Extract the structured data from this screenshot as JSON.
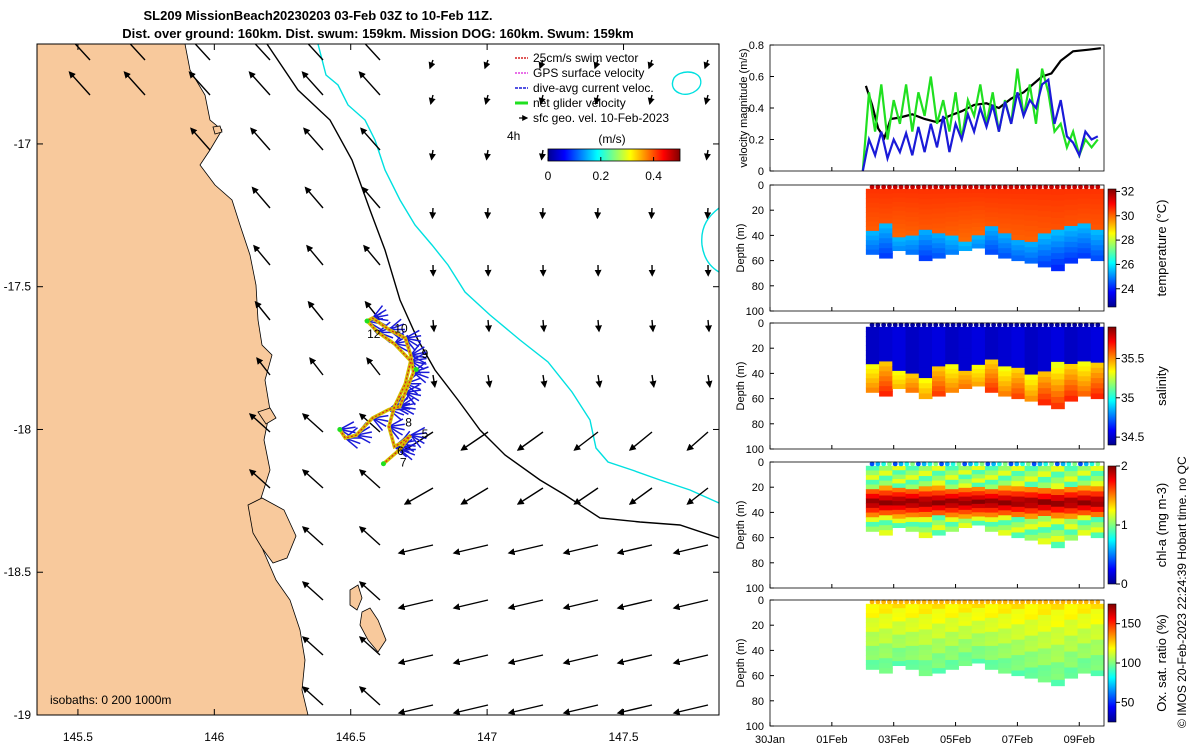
{
  "title": {
    "line1": "SL209 MissionBeach20230203 03-Feb 03Z to 10-Feb 11Z.",
    "line2": "Dist. over ground: 160km. Dist. swum: 159km. Mission DOG: 160km. Swum: 159km"
  },
  "footer": "© IMOS 20-Feb-2023 22:24:39 Hobart time. no QC",
  "colors": {
    "land": "#f8c99c",
    "isobath_200": "#00e0e0",
    "isobath_1000": "#000000",
    "swim_vector": "#d62020",
    "gps_velocity": "#e040e0",
    "current": "#1a1ad8",
    "net_velocity": "#20e020"
  },
  "map": {
    "xlim": [
      145.35,
      147.85
    ],
    "ylim": [
      -19.0,
      -16.65
    ],
    "xticks": [
      "145.5",
      "146",
      "146.5",
      "147",
      "147.5"
    ],
    "yticks": [
      "-17",
      "-17.5",
      "-18",
      "-18.5",
      "-19"
    ],
    "isobaths_label": "isobaths: 0   200  1000m",
    "legend": [
      {
        "label": "25cm/s swim vector",
        "color": "#d62020"
      },
      {
        "label": "GPS surface velocity",
        "color": "#e040e0"
      },
      {
        "label": "dive-avg current veloc.",
        "color": "#1a1ad8"
      },
      {
        "label": "net glider velocity",
        "color": "#20e020"
      },
      {
        "label": "sfc geo. vel. 10-Feb-2023",
        "color": "#000000"
      }
    ],
    "time_tag": "4h",
    "colorbar": {
      "unit": "(m/s)",
      "ticks": [
        "0",
        "0.2",
        "0.4"
      ],
      "max": 0.5
    },
    "day_labels": [
      {
        "text": "12",
        "lon": 146.56,
        "lat": -17.68
      },
      {
        "text": "10",
        "lon": 146.66,
        "lat": -17.66
      },
      {
        "text": "9",
        "lon": 146.76,
        "lat": -17.75
      },
      {
        "text": "8",
        "lon": 146.7,
        "lat": -17.99
      },
      {
        "text": "5",
        "lon": 146.76,
        "lat": -18.03
      },
      {
        "text": "6",
        "lon": 146.67,
        "lat": -18.09
      },
      {
        "text": "7",
        "lon": 146.68,
        "lat": -18.13
      }
    ]
  },
  "chart_data": [
    {
      "type": "line",
      "title": "",
      "ylabel": "velocity magnitude (m/s)",
      "ylim": [
        0,
        0.8
      ],
      "yticks": [
        "0",
        "0.2",
        "0.4",
        "0.6",
        "0.8"
      ],
      "series": [
        {
          "name": "sfc geo. vel.",
          "color": "#000000",
          "x": [
            3.1,
            3.3,
            3.5,
            3.7,
            3.9,
            4.2,
            4.6,
            5.0,
            5.4,
            5.8,
            6.2,
            6.6,
            7.0,
            7.4,
            7.8,
            8.2,
            8.5,
            8.8,
            9.1,
            9.4,
            9.8,
            10.3,
            10.7
          ],
          "values": [
            0.54,
            0.42,
            0.27,
            0.21,
            0.33,
            0.34,
            0.36,
            0.33,
            0.31,
            0.35,
            0.38,
            0.42,
            0.43,
            0.4,
            0.46,
            0.5,
            0.55,
            0.6,
            0.62,
            0.7,
            0.76,
            0.77,
            0.78
          ]
        },
        {
          "name": "net glider velocity",
          "color": "#20e020",
          "x": [
            3.0,
            3.2,
            3.4,
            3.6,
            3.8,
            4.0,
            4.2,
            4.4,
            4.6,
            4.8,
            5.0,
            5.2,
            5.4,
            5.6,
            5.8,
            6.0,
            6.2,
            6.4,
            6.6,
            6.8,
            7.0,
            7.2,
            7.4,
            7.6,
            7.8,
            8.0,
            8.2,
            8.4,
            8.6,
            8.8,
            9.0,
            9.2,
            9.4,
            9.6,
            9.8,
            10.0,
            10.2,
            10.4,
            10.6
          ],
          "values": [
            0.0,
            0.5,
            0.25,
            0.55,
            0.2,
            0.45,
            0.3,
            0.55,
            0.25,
            0.5,
            0.35,
            0.6,
            0.3,
            0.45,
            0.25,
            0.5,
            0.2,
            0.45,
            0.35,
            0.55,
            0.3,
            0.5,
            0.25,
            0.45,
            0.3,
            0.65,
            0.35,
            0.55,
            0.3,
            0.65,
            0.5,
            0.25,
            0.3,
            0.15,
            0.25,
            0.1,
            0.2,
            0.15,
            0.2
          ]
        },
        {
          "name": "dive-avg current veloc.",
          "color": "#1a1ad8",
          "x": [
            3.0,
            3.2,
            3.4,
            3.6,
            3.8,
            4.0,
            4.2,
            4.4,
            4.6,
            4.8,
            5.0,
            5.2,
            5.4,
            5.6,
            5.8,
            6.0,
            6.2,
            6.4,
            6.6,
            6.8,
            7.0,
            7.2,
            7.4,
            7.6,
            7.8,
            8.0,
            8.2,
            8.4,
            8.6,
            8.8,
            9.0,
            9.2,
            9.4,
            9.6,
            9.8,
            10.0,
            10.2,
            10.4,
            10.6
          ],
          "values": [
            0.0,
            0.2,
            0.1,
            0.25,
            0.08,
            0.2,
            0.12,
            0.24,
            0.1,
            0.28,
            0.12,
            0.3,
            0.15,
            0.35,
            0.12,
            0.3,
            0.2,
            0.36,
            0.25,
            0.4,
            0.28,
            0.42,
            0.25,
            0.44,
            0.3,
            0.5,
            0.35,
            0.45,
            0.4,
            0.55,
            0.58,
            0.3,
            0.45,
            0.22,
            0.18,
            0.1,
            0.25,
            0.2,
            0.22
          ]
        }
      ],
      "xlim": [
        0,
        10.8
      ]
    },
    {
      "type": "heatmap",
      "title": "",
      "ylabel": "Depth (m)",
      "colorbar_label": "temperature (°C)",
      "colorbar_ticks": [
        "32",
        "30",
        "28",
        "26",
        "24"
      ],
      "clim": [
        22.5,
        32.2
      ],
      "ylim": [
        0,
        100
      ],
      "yticks": [
        "0",
        "20",
        "40",
        "60",
        "80",
        "100"
      ],
      "xlim": [
        0,
        10.8
      ],
      "surface_value": 30.5,
      "deep_value": 25.5,
      "mixed_layer_depth": [
        35,
        30,
        40,
        38,
        32,
        35,
        40,
        45,
        38,
        30,
        35,
        40,
        42,
        38,
        35,
        32,
        30,
        35
      ],
      "bottom_depth": [
        55,
        58,
        52,
        55,
        60,
        58,
        55,
        52,
        50,
        55,
        58,
        60,
        62,
        65,
        68,
        62,
        58,
        60
      ]
    },
    {
      "type": "heatmap",
      "title": "",
      "ylabel": "Depth (m)",
      "colorbar_label": "salinity",
      "colorbar_ticks": [
        "35.5",
        "35",
        "34.5"
      ],
      "clim": [
        34.4,
        35.9
      ],
      "ylim": [
        0,
        100
      ],
      "yticks": [
        "0",
        "20",
        "40",
        "60",
        "80",
        "100"
      ],
      "xlim": [
        0,
        10.8
      ],
      "surface_value": 34.5,
      "deep_value": 35.3,
      "mixed_layer_depth": [
        30,
        28,
        35,
        38,
        40,
        32,
        30,
        35,
        30,
        28,
        32,
        35,
        38,
        35,
        30,
        32,
        28,
        30
      ],
      "bottom_depth": [
        55,
        58,
        52,
        55,
        60,
        58,
        55,
        52,
        50,
        55,
        58,
        60,
        62,
        65,
        68,
        62,
        58,
        60
      ]
    },
    {
      "type": "heatmap",
      "title": "",
      "ylabel": "Depth (m)",
      "colorbar_label": "chl-a (mg m-3)",
      "colorbar_ticks": [
        "2",
        "1",
        "0"
      ],
      "clim": [
        0,
        2
      ],
      "ylim": [
        0,
        100
      ],
      "yticks": [
        "0",
        "20",
        "40",
        "60",
        "80",
        "100"
      ],
      "xlim": [
        0,
        10.8
      ],
      "surface_value": 0.9,
      "max_value": 2.0,
      "chl_max_depth": 30,
      "bottom_depth": [
        55,
        58,
        52,
        55,
        60,
        58,
        55,
        52,
        50,
        55,
        58,
        60,
        62,
        65,
        68,
        62,
        58,
        60
      ]
    },
    {
      "type": "heatmap",
      "title": "",
      "ylabel": "Depth (m)",
      "colorbar_label": "Ox. sat. ratio (%)",
      "colorbar_ticks": [
        "150",
        "100",
        "50"
      ],
      "clim": [
        25,
        175
      ],
      "ylim": [
        0,
        100
      ],
      "yticks": [
        "0",
        "20",
        "40",
        "60",
        "80",
        "100"
      ],
      "xlim": [
        0,
        10.8
      ],
      "surface_value": 118,
      "deep_value": 100,
      "bottom_depth": [
        55,
        58,
        52,
        55,
        60,
        58,
        55,
        52,
        50,
        55,
        58,
        60,
        62,
        65,
        68,
        62,
        58,
        60
      ]
    }
  ],
  "time_axis": {
    "ticks": [
      {
        "label": "30Jan",
        "t": 0
      },
      {
        "label": "01Feb",
        "t": 2
      },
      {
        "label": "03Feb",
        "t": 4
      },
      {
        "label": "05Feb",
        "t": 6
      },
      {
        "label": "07Feb",
        "t": 8
      },
      {
        "label": "09Feb",
        "t": 10
      }
    ],
    "data_start": 3.1,
    "data_end": 10.8
  }
}
